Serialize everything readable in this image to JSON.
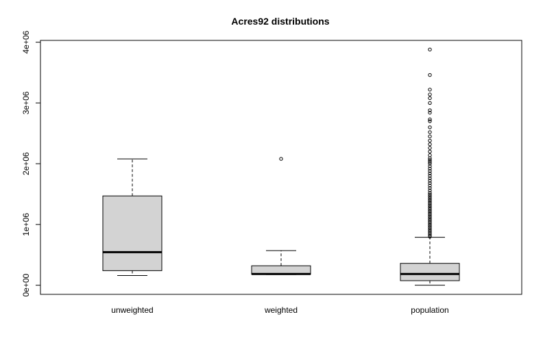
{
  "chart_data": {
    "type": "boxplot",
    "title": "Acres92 distributions",
    "xlabel": "",
    "ylabel": "",
    "ylim": [
      -150000,
      4030000
    ],
    "y_ticks": [
      0,
      1000000,
      2000000,
      3000000,
      4000000
    ],
    "y_tick_labels": [
      "0e+00",
      "1e+06",
      "2e+06",
      "3e+06",
      "4e+06"
    ],
    "box_fill": "#d3d3d3",
    "outline_color": "#000000",
    "grid": false,
    "categories": [
      "unweighted",
      "weighted",
      "population"
    ],
    "boxes": [
      {
        "name": "unweighted",
        "whisker_low": 160000,
        "q1": 240000,
        "median": 545000,
        "q3": 1470000,
        "whisker_high": 2080000,
        "outliers": []
      },
      {
        "name": "weighted",
        "whisker_low": 175000,
        "q1": 180000,
        "median": 185000,
        "q3": 320000,
        "whisker_high": 570000,
        "outliers": [
          2080000
        ]
      },
      {
        "name": "population",
        "whisker_low": 0,
        "q1": 75000,
        "median": 185000,
        "q3": 360000,
        "whisker_high": 790000,
        "outliers": [
          800000,
          830000,
          860000,
          890000,
          920000,
          950000,
          980000,
          1010000,
          1040000,
          1070000,
          1100000,
          1130000,
          1160000,
          1190000,
          1220000,
          1250000,
          1280000,
          1310000,
          1340000,
          1370000,
          1400000,
          1430000,
          1460000,
          1490000,
          1520000,
          1560000,
          1600000,
          1640000,
          1680000,
          1720000,
          1760000,
          1800000,
          1840000,
          1880000,
          1920000,
          1960000,
          2000000,
          2030000,
          2060000,
          2090000,
          2140000,
          2200000,
          2260000,
          2320000,
          2380000,
          2450000,
          2520000,
          2600000,
          2700000,
          2730000,
          2840000,
          2880000,
          3000000,
          3080000,
          3140000,
          3220000,
          3460000,
          3880000
        ]
      }
    ]
  }
}
